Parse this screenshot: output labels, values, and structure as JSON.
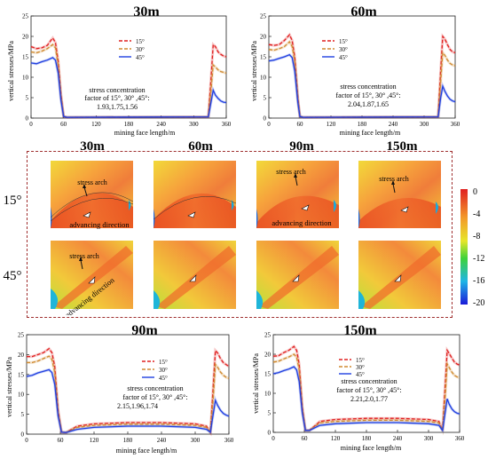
{
  "chart_data": [
    {
      "type": "line",
      "title": "30m",
      "xlabel": "mining face length/m",
      "ylabel": "vertical stresses/MPa",
      "xlim": [
        0,
        360
      ],
      "ylim": [
        0,
        25
      ],
      "xticks": [
        "0",
        "60",
        "120",
        "180",
        "240",
        "300",
        "360"
      ],
      "yticks": [
        "0",
        "5",
        "10",
        "15",
        "20",
        "25"
      ],
      "annotation": [
        "stress concentration",
        "factor of 15°, 30° ,45°:",
        "1.93,1.75,1.56"
      ],
      "series": [
        {
          "name": "15°",
          "color": "#e02020",
          "x": [
            0,
            10,
            20,
            30,
            40,
            45,
            50,
            55,
            60,
            66,
            327,
            332,
            336,
            340,
            345,
            350,
            355,
            360
          ],
          "y": [
            17.5,
            17,
            17.2,
            17.8,
            19.6,
            18.5,
            14,
            6,
            0.4,
            0.2,
            0.3,
            10,
            18,
            17.5,
            16.2,
            15.6,
            15.2,
            15
          ]
        },
        {
          "name": "30°",
          "color": "#d08a30",
          "x": [
            0,
            10,
            20,
            30,
            40,
            45,
            50,
            55,
            60,
            66,
            327,
            332,
            336,
            340,
            345,
            350,
            355,
            360
          ],
          "y": [
            16.2,
            16,
            16.4,
            17,
            18,
            17.2,
            13,
            5.5,
            0.4,
            0.2,
            0.3,
            7,
            13,
            12.5,
            11.8,
            11.4,
            11.2,
            11
          ]
        },
        {
          "name": "45°",
          "color": "#2040e0",
          "x": [
            0,
            10,
            20,
            30,
            40,
            45,
            50,
            55,
            60,
            66,
            327,
            332,
            336,
            340,
            345,
            350,
            355,
            360
          ],
          "y": [
            13.5,
            13.3,
            13.8,
            14.2,
            14.8,
            14.2,
            11,
            4.5,
            0.4,
            0.2,
            0.3,
            4,
            6.8,
            5.6,
            4.8,
            4.2,
            3.9,
            3.8
          ]
        }
      ]
    },
    {
      "type": "line",
      "title": "60m",
      "xlabel": "mining face length/m",
      "ylabel": "vertical stresses/MPa",
      "xlim": [
        0,
        360
      ],
      "ylim": [
        0,
        25
      ],
      "xticks": [
        "0",
        "60",
        "120",
        "180",
        "240",
        "300",
        "360"
      ],
      "yticks": [
        "0",
        "5",
        "10",
        "15",
        "20",
        "25"
      ],
      "annotation": [
        "stress concentration",
        "factor of 15°, 30° ,45°:",
        "2.04,1.87,1.65"
      ],
      "series": [
        {
          "name": "15°",
          "color": "#e02020",
          "x": [
            0,
            10,
            20,
            30,
            40,
            45,
            50,
            56,
            60,
            66,
            327,
            332,
            336,
            340,
            345,
            350,
            355,
            360
          ],
          "y": [
            18,
            17.8,
            18,
            19,
            20.4,
            19,
            15,
            5,
            0.4,
            0.2,
            0.3,
            12,
            20,
            19.4,
            18,
            16.8,
            16.2,
            16
          ]
        },
        {
          "name": "30°",
          "color": "#d08a30",
          "x": [
            0,
            10,
            20,
            30,
            40,
            45,
            50,
            56,
            60,
            66,
            327,
            332,
            336,
            340,
            345,
            350,
            355,
            360
          ],
          "y": [
            16.8,
            16.6,
            17,
            17.5,
            18.7,
            17.5,
            14,
            4.6,
            0.4,
            0.2,
            0.3,
            9,
            16,
            15.4,
            14.2,
            13.4,
            13,
            12.8
          ]
        },
        {
          "name": "45°",
          "color": "#2040e0",
          "x": [
            0,
            10,
            20,
            30,
            40,
            45,
            50,
            56,
            60,
            66,
            327,
            332,
            336,
            340,
            345,
            350,
            355,
            360
          ],
          "y": [
            14,
            14.2,
            14.6,
            15,
            15.5,
            14.8,
            11.5,
            3.8,
            0.4,
            0.2,
            0.3,
            5,
            7.8,
            6.6,
            5.4,
            4.6,
            4.2,
            4
          ]
        }
      ]
    },
    {
      "type": "line",
      "title": "90m",
      "xlabel": "mining face length/m",
      "ylabel": "vertical stresses/MPa",
      "xlim": [
        0,
        360
      ],
      "ylim": [
        0,
        25
      ],
      "xticks": [
        "0",
        "60",
        "120",
        "180",
        "240",
        "300",
        "360"
      ],
      "yticks": [
        "0",
        "5",
        "10",
        "15",
        "20",
        "25"
      ],
      "annotation": [
        "stress concentration",
        "factor of 15°, 30° ,45°:",
        "2.15,1.96,1.74"
      ],
      "series": [
        {
          "name": "15°",
          "color": "#e02020",
          "x": [
            0,
            10,
            20,
            30,
            40,
            45,
            50,
            56,
            62,
            70,
            90,
            120,
            180,
            240,
            300,
            320,
            327,
            332,
            336,
            340,
            345,
            350,
            355,
            360
          ],
          "y": [
            19.5,
            19.5,
            20,
            20.5,
            21.5,
            20.5,
            17,
            6,
            0.5,
            0.4,
            2,
            2.6,
            2.9,
            2.9,
            2.6,
            2,
            0.5,
            12,
            21,
            20.4,
            19,
            18,
            17.5,
            17
          ]
        },
        {
          "name": "30°",
          "color": "#d08a30",
          "x": [
            0,
            10,
            20,
            30,
            40,
            45,
            50,
            56,
            62,
            70,
            90,
            120,
            180,
            240,
            300,
            320,
            327,
            332,
            336,
            340,
            345,
            350,
            355,
            360
          ],
          "y": [
            18,
            18,
            18.4,
            19,
            19.6,
            18.8,
            15.5,
            5.5,
            0.5,
            0.4,
            1.7,
            2.2,
            2.5,
            2.5,
            2.2,
            1.7,
            0.5,
            9,
            17.5,
            16.8,
            15.6,
            14.8,
            14.3,
            14
          ]
        },
        {
          "name": "45°",
          "color": "#2040e0",
          "x": [
            0,
            10,
            20,
            30,
            40,
            45,
            50,
            56,
            62,
            70,
            90,
            120,
            180,
            240,
            300,
            320,
            327,
            332,
            336,
            340,
            345,
            350,
            355,
            360
          ],
          "y": [
            14.5,
            14.8,
            15.4,
            15.8,
            16.2,
            15.5,
            12.5,
            4.5,
            0.5,
            0.4,
            1.2,
            1.7,
            2,
            2,
            1.7,
            1.2,
            0.5,
            5,
            8.5,
            7.2,
            6,
            5.2,
            4.8,
            4.5
          ]
        }
      ]
    },
    {
      "type": "line",
      "title": "150m",
      "xlabel": "mining face length/m",
      "ylabel": "vertical stresses/MPa",
      "xlim": [
        0,
        360
      ],
      "ylim": [
        0,
        25
      ],
      "xticks": [
        "0",
        "60",
        "120",
        "180",
        "240",
        "300",
        "360"
      ],
      "yticks": [
        "0",
        "5",
        "10",
        "15",
        "20",
        "25"
      ],
      "annotation": [
        "stress concentration",
        "factor of 15°, 30° ,45°:",
        "2.21,2.0,1.77"
      ],
      "series": [
        {
          "name": "15°",
          "color": "#e02020",
          "x": [
            0,
            10,
            20,
            30,
            40,
            45,
            50,
            56,
            62,
            70,
            90,
            120,
            180,
            240,
            300,
            320,
            327,
            332,
            336,
            340,
            345,
            350,
            355,
            360
          ],
          "y": [
            19.5,
            19.6,
            20.4,
            21,
            22,
            21,
            17.5,
            6.5,
            0.5,
            0.5,
            2.8,
            3.3,
            3.6,
            3.6,
            3.3,
            2.8,
            0.5,
            12,
            21,
            20.2,
            19,
            18,
            17.5,
            17.2
          ]
        },
        {
          "name": "30°",
          "color": "#d08a30",
          "x": [
            0,
            10,
            20,
            30,
            40,
            45,
            50,
            56,
            62,
            70,
            90,
            120,
            180,
            240,
            300,
            320,
            327,
            332,
            336,
            340,
            345,
            350,
            355,
            360
          ],
          "y": [
            18,
            18.2,
            18.8,
            19.3,
            20,
            19.2,
            16,
            6,
            0.5,
            0.5,
            2.4,
            2.8,
            3.1,
            3.1,
            2.8,
            2.4,
            0.5,
            9,
            17.5,
            16.6,
            15.4,
            14.6,
            14.2,
            14
          ]
        },
        {
          "name": "45°",
          "color": "#2040e0",
          "x": [
            0,
            10,
            20,
            30,
            40,
            45,
            50,
            56,
            62,
            70,
            90,
            120,
            180,
            240,
            300,
            320,
            327,
            332,
            336,
            340,
            345,
            350,
            355,
            360
          ],
          "y": [
            15,
            15.3,
            15.8,
            16.2,
            16.8,
            16,
            13,
            5,
            0.5,
            0.5,
            1.8,
            2.2,
            2.5,
            2.5,
            2.2,
            1.8,
            0.5,
            5,
            8.6,
            7.2,
            6,
            5.3,
            4.9,
            4.7
          ]
        }
      ]
    }
  ],
  "contour_panel": {
    "column_titles": [
      "30m",
      "60m",
      "90m",
      "150m"
    ],
    "row_labels": [
      "15°",
      "45°"
    ],
    "annotation_arch": "stress arch",
    "annotation_direction": "advancing direction",
    "colorbar_ticks": [
      "0",
      "-4",
      "-8",
      "-12",
      "-16",
      "-20"
    ]
  },
  "colors": {
    "accent_red": "#e02020",
    "accent_orange": "#d08a30",
    "accent_blue": "#2040e0",
    "frame_dash": "#a03030"
  }
}
